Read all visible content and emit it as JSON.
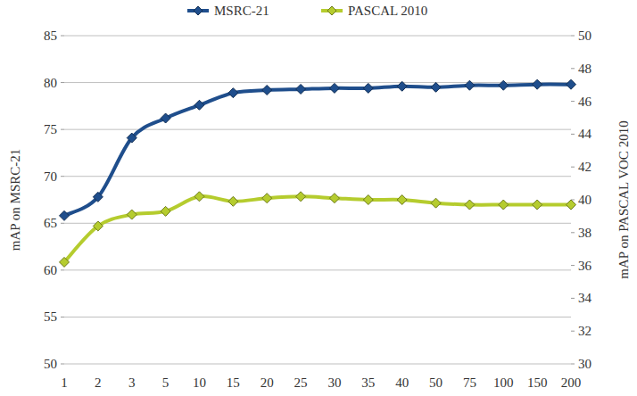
{
  "chart_data": {
    "type": "line",
    "categories": [
      "1",
      "2",
      "3",
      "5",
      "10",
      "15",
      "20",
      "25",
      "30",
      "35",
      "40",
      "50",
      "75",
      "100",
      "150",
      "200"
    ],
    "series": [
      {
        "name": "MSRC-21",
        "color": "#1f4e8c",
        "marker": "diamond",
        "values": [
          65.8,
          67.8,
          74.1,
          76.2,
          77.6,
          78.9,
          79.2,
          79.3,
          79.4,
          79.4,
          79.6,
          79.5,
          79.7,
          79.7,
          79.8,
          79.8
        ]
      },
      {
        "name": "PASCAL 2010",
        "color": "#b5cc2e",
        "marker": "diamond",
        "axis": "y2",
        "values": [
          36.2,
          38.4,
          39.1,
          39.3,
          40.2,
          39.9,
          40.1,
          40.2,
          40.1,
          40.0,
          40.0,
          39.8,
          39.7,
          39.7,
          39.7,
          39.7
        ]
      }
    ],
    "ylabel": "mAP on MSRC-21",
    "y2label": "mAP on PASCAL VOC 2010",
    "ylim": [
      50,
      85
    ],
    "yticks": [
      50,
      55,
      60,
      65,
      70,
      75,
      80,
      85
    ],
    "y2lim": [
      30,
      50
    ],
    "y2ticks": [
      30,
      32,
      34,
      36,
      38,
      40,
      42,
      44,
      46,
      48,
      50
    ],
    "grid": true,
    "legend": "top"
  }
}
